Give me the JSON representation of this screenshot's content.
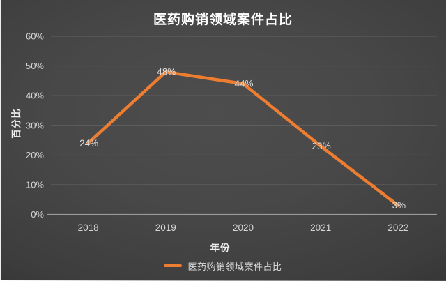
{
  "chart_data": {
    "type": "line",
    "title": "医药购销领域案件占比",
    "xlabel": "年份",
    "ylabel": "百分比",
    "categories": [
      "2018",
      "2019",
      "2020",
      "2021",
      "2022"
    ],
    "series": [
      {
        "name": "医药购销领域案件占比",
        "values": [
          24,
          48,
          44,
          23,
          3
        ],
        "data_labels": [
          "24%",
          "48%",
          "44%",
          "23%",
          "3%"
        ],
        "color": "#ED7D31"
      }
    ],
    "ylim": [
      0,
      60
    ],
    "ytick_step": 10,
    "ytick_labels": [
      "0%",
      "10%",
      "20%",
      "30%",
      "40%",
      "50%",
      "60%"
    ],
    "grid": true,
    "legend_position": "bottom-center"
  },
  "legend": {
    "label": "医药购销领域案件占比"
  },
  "colors": {
    "series_line": "#ED7D31",
    "tick_label": "#d6d6d6",
    "data_label": "#dcdcdc",
    "gridline": "rgba(255,255,255,0.14)",
    "axis_line": "#9a9a9a",
    "title_text": "#ffffff"
  }
}
